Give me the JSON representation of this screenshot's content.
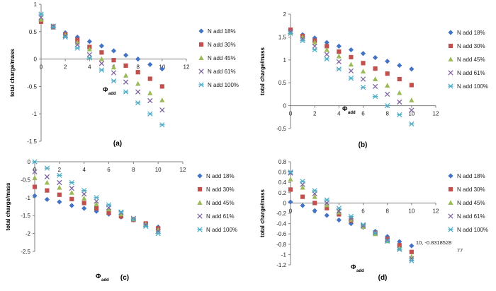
{
  "chart_data": [
    {
      "type": "scatter",
      "panel_label": "(a)",
      "ylabel": "total charge/mass",
      "xlabel": "Φ",
      "xlabel_sub": "add",
      "xlim": [
        0,
        12
      ],
      "ylim": [
        -1.5,
        1
      ],
      "xticks": [
        "0",
        "2",
        "4",
        "6",
        "8",
        "10",
        "12"
      ],
      "yticks": [
        "1",
        "0.5",
        "0",
        "-0.5",
        "-1",
        "-1.5"
      ],
      "ytick_values": [
        1,
        0.5,
        0,
        -0.5,
        -1,
        -1.5
      ],
      "x": [
        0,
        1,
        2,
        3,
        4,
        5,
        6,
        7,
        8,
        9,
        10
      ],
      "series": [
        {
          "name": "N add 18%",
          "values": [
            0.7,
            0.6,
            0.48,
            0.4,
            0.32,
            0.24,
            0.15,
            0.07,
            0.0,
            -0.1,
            -0.18
          ]
        },
        {
          "name": "N add 30%",
          "values": [
            0.68,
            0.58,
            0.45,
            0.35,
            0.22,
            0.12,
            -0.02,
            -0.12,
            -0.24,
            -0.36,
            -0.5
          ]
        },
        {
          "name": "N add 45%",
          "values": [
            0.72,
            0.6,
            0.44,
            0.3,
            0.18,
            0.0,
            -0.15,
            -0.3,
            -0.45,
            -0.62,
            -0.75
          ]
        },
        {
          "name": "N add 61%",
          "values": [
            0.76,
            0.6,
            0.42,
            0.26,
            0.08,
            -0.08,
            -0.25,
            -0.42,
            -0.6,
            -0.76,
            -0.93
          ]
        },
        {
          "name": "N add 100%",
          "values": [
            0.82,
            0.58,
            0.4,
            0.2,
            0.02,
            -0.2,
            -0.4,
            -0.6,
            -0.8,
            -1.0,
            -1.2
          ]
        }
      ]
    },
    {
      "type": "scatter",
      "panel_label": "(b)",
      "ylabel": "total charge/mass",
      "xlabel": "Φ",
      "xlabel_sub": "add",
      "xlim": [
        0,
        12
      ],
      "ylim": [
        -0.5,
        2
      ],
      "xticks": [
        "0",
        "2",
        "4",
        "6",
        "8",
        "10",
        "12"
      ],
      "yticks": [
        "2",
        "1.5",
        "1",
        "0.5",
        "0",
        "-0.5"
      ],
      "ytick_values": [
        2,
        1.5,
        1,
        0.5,
        0,
        -0.5
      ],
      "x": [
        0,
        1,
        2,
        3,
        4,
        5,
        6,
        7,
        8,
        9,
        10
      ],
      "series": [
        {
          "name": "N add 18%",
          "values": [
            1.65,
            1.55,
            1.48,
            1.38,
            1.3,
            1.22,
            1.14,
            1.05,
            0.97,
            0.88,
            0.8
          ]
        },
        {
          "name": "N add 30%",
          "values": [
            1.66,
            1.52,
            1.42,
            1.3,
            1.18,
            1.06,
            0.93,
            0.81,
            0.7,
            0.58,
            0.45
          ]
        },
        {
          "name": "N add 45%",
          "values": [
            1.6,
            1.5,
            1.38,
            1.22,
            1.08,
            0.9,
            0.75,
            0.58,
            0.44,
            0.28,
            0.12
          ]
        },
        {
          "name": "N add 61%",
          "values": [
            1.62,
            1.46,
            1.3,
            1.12,
            0.96,
            0.76,
            0.58,
            0.42,
            0.25,
            0.08,
            -0.1
          ]
        },
        {
          "name": "N add 100%",
          "values": [
            1.58,
            1.42,
            1.22,
            1.02,
            0.8,
            0.6,
            0.4,
            0.2,
            0.0,
            -0.2,
            -0.4
          ]
        }
      ]
    },
    {
      "type": "scatter",
      "panel_label": "(c)",
      "ylabel": "total charge/mass",
      "xlabel": "Φ",
      "xlabel_sub": "add",
      "xlim": [
        0,
        12
      ],
      "ylim": [
        -2.5,
        0
      ],
      "xticks": [
        "0",
        "2",
        "4",
        "6",
        "8",
        "10",
        "12"
      ],
      "yticks": [
        "0",
        "-0.5",
        "-1",
        "-1.5",
        "-2",
        "-2.5"
      ],
      "ytick_values": [
        0,
        -0.5,
        -1,
        -1.5,
        -2,
        -2.5
      ],
      "x": [
        0,
        1,
        2,
        3,
        4,
        5,
        6,
        7,
        8,
        9,
        10
      ],
      "series": [
        {
          "name": "N add 18%",
          "values": [
            -0.95,
            -1.05,
            -1.12,
            -1.22,
            -1.3,
            -1.38,
            -1.46,
            -1.54,
            -1.62,
            -1.74,
            -1.82
          ]
        },
        {
          "name": "N add 30%",
          "values": [
            -0.7,
            -0.8,
            -0.92,
            -1.04,
            -1.15,
            -1.3,
            -1.42,
            -1.52,
            -1.62,
            -1.72,
            -1.86
          ]
        },
        {
          "name": "N add 45%",
          "values": [
            -0.45,
            -0.58,
            -0.72,
            -0.86,
            -1.02,
            -1.18,
            -1.32,
            -1.46,
            -1.6,
            -1.74,
            -1.9
          ]
        },
        {
          "name": "N add 61%",
          "values": [
            -0.28,
            -0.42,
            -0.58,
            -0.74,
            -0.9,
            -1.1,
            -1.28,
            -1.42,
            -1.58,
            -1.76,
            -1.94
          ]
        },
        {
          "name": "N add 100%",
          "values": [
            0.0,
            -0.18,
            -0.38,
            -0.58,
            -0.8,
            -1.0,
            -1.2,
            -1.4,
            -1.6,
            -1.8,
            -2.0
          ]
        }
      ]
    },
    {
      "type": "scatter",
      "panel_label": "(d)",
      "ylabel": "total charge/mass",
      "xlabel": "Φ",
      "xlabel_sub": "add",
      "xlim": [
        0,
        12
      ],
      "ylim": [
        -1.2,
        0.8
      ],
      "xticks": [
        "0",
        "2",
        "4",
        "6",
        "8",
        "10",
        "12"
      ],
      "yticks": [
        "0.8",
        "0.6",
        "0.4",
        "0.2",
        "0",
        "-0.2",
        "-0.4",
        "-0.6",
        "-0.8",
        "-1",
        "-1.2"
      ],
      "ytick_values": [
        0.8,
        0.6,
        0.4,
        0.2,
        0,
        -0.2,
        -0.4,
        -0.6,
        -0.8,
        -1,
        -1.2
      ],
      "x": [
        0,
        1,
        2,
        3,
        4,
        5,
        6,
        7,
        8,
        9,
        10
      ],
      "series": [
        {
          "name": "N add 18%",
          "values": [
            0.02,
            -0.05,
            -0.15,
            -0.24,
            -0.33,
            -0.4,
            -0.47,
            -0.55,
            -0.65,
            -0.75,
            -0.83
          ]
        },
        {
          "name": "N add 30%",
          "values": [
            0.26,
            0.12,
            0.0,
            -0.1,
            -0.22,
            -0.34,
            -0.46,
            -0.58,
            -0.7,
            -0.82,
            -0.95
          ]
        },
        {
          "name": "N add 45%",
          "values": [
            0.46,
            0.3,
            0.12,
            -0.04,
            -0.18,
            -0.32,
            -0.46,
            -0.6,
            -0.74,
            -0.88,
            -1.04
          ]
        },
        {
          "name": "N add 61%",
          "values": [
            0.58,
            0.36,
            0.18,
            0.0,
            -0.16,
            -0.3,
            -0.44,
            -0.58,
            -0.72,
            -0.9,
            -1.08
          ]
        },
        {
          "name": "N add 100%",
          "values": [
            0.6,
            0.42,
            0.24,
            0.06,
            -0.1,
            -0.26,
            -0.42,
            -0.58,
            -0.74,
            -0.9,
            -1.12
          ]
        }
      ],
      "annotation": {
        "lines": [
          "10, -0.8318528",
          "77"
        ],
        "x": 10,
        "y": -0.83
      }
    }
  ],
  "series_colors": [
    "#4472c4",
    "#c0504d",
    "#9bbb59",
    "#8064a2",
    "#4bacc6"
  ],
  "series_markers": [
    "diamond-icon",
    "square-icon",
    "triangle-icon",
    "x-icon",
    "asterisk-icon"
  ]
}
